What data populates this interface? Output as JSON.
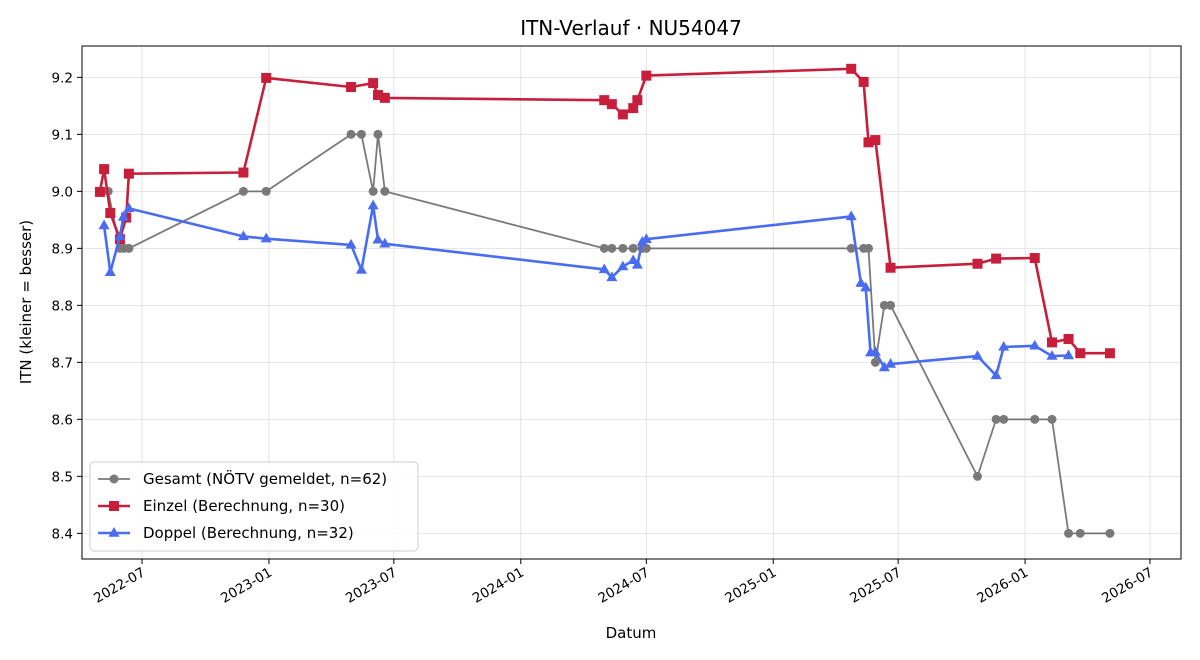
{
  "chart_data": {
    "type": "line",
    "title": "ITN-Verlauf · NU54047",
    "xlabel": "Datum",
    "ylabel": "ITN  (kleiner = besser)",
    "x_ticks": [
      "2022-07",
      "2023-01",
      "2023-07",
      "2024-01",
      "2024-07",
      "2025-01",
      "2025-07",
      "2026-01",
      "2026-07"
    ],
    "y_ticks": [
      "8.4",
      "8.5",
      "8.6",
      "8.7",
      "8.8",
      "8.9",
      "9.0",
      "9.1",
      "9.2"
    ],
    "ylim": [
      8.355,
      9.255
    ],
    "xlim": [
      "2022-04-05",
      "2026-08-15"
    ],
    "grid": true,
    "legend_position": "lower-left",
    "series": [
      {
        "name": "Gesamt (NÖTV gemeldet, n=62)",
        "color": "#555555",
        "marker": "circle",
        "points": [
          [
            "2022-05-01",
            9.0
          ],
          [
            "2022-05-13",
            9.0
          ],
          [
            "2022-05-30",
            8.9
          ],
          [
            "2022-06-05",
            8.9
          ],
          [
            "2022-06-12",
            8.9
          ],
          [
            "2022-11-25",
            9.0
          ],
          [
            "2022-12-28",
            9.0
          ],
          [
            "2023-04-30",
            9.1
          ],
          [
            "2023-05-15",
            9.1
          ],
          [
            "2023-06-01",
            9.0
          ],
          [
            "2023-06-08",
            9.1
          ],
          [
            "2023-06-18",
            9.0
          ],
          [
            "2024-05-01",
            8.9
          ],
          [
            "2024-05-12",
            8.9
          ],
          [
            "2024-05-28",
            8.9
          ],
          [
            "2024-06-12",
            8.9
          ],
          [
            "2024-06-25",
            8.9
          ],
          [
            "2024-07-01",
            8.9
          ],
          [
            "2025-04-24",
            8.9
          ],
          [
            "2025-05-12",
            8.9
          ],
          [
            "2025-05-19",
            8.9
          ],
          [
            "2025-05-29",
            8.7
          ],
          [
            "2025-06-11",
            8.8
          ],
          [
            "2025-06-20",
            8.8
          ],
          [
            "2025-10-24",
            8.5
          ],
          [
            "2025-11-20",
            8.6
          ],
          [
            "2025-12-01",
            8.6
          ],
          [
            "2026-01-15",
            8.6
          ],
          [
            "2026-02-09",
            8.6
          ],
          [
            "2026-03-05",
            8.4
          ],
          [
            "2026-03-22",
            8.4
          ],
          [
            "2026-05-04",
            8.4
          ]
        ]
      },
      {
        "name": "Einzel (Berechnung, n=30)",
        "color": "#c71f3b",
        "marker": "square",
        "points": [
          [
            "2022-05-01",
            8.999
          ],
          [
            "2022-05-07",
            9.039
          ],
          [
            "2022-05-16",
            8.962
          ],
          [
            "2022-05-30",
            8.916
          ],
          [
            "2022-06-08",
            8.954
          ],
          [
            "2022-06-12",
            9.031
          ],
          [
            "2022-11-25",
            9.033
          ],
          [
            "2022-12-28",
            9.199
          ],
          [
            "2023-04-30",
            9.183
          ],
          [
            "2023-06-01",
            9.19
          ],
          [
            "2023-06-08",
            9.169
          ],
          [
            "2023-06-18",
            9.164
          ],
          [
            "2024-05-01",
            9.16
          ],
          [
            "2024-05-12",
            9.153
          ],
          [
            "2024-05-28",
            9.135
          ],
          [
            "2024-06-12",
            9.146
          ],
          [
            "2024-06-18",
            9.16
          ],
          [
            "2024-07-01",
            9.203
          ],
          [
            "2025-04-24",
            9.215
          ],
          [
            "2025-05-12",
            9.192
          ],
          [
            "2025-05-19",
            9.086
          ],
          [
            "2025-05-29",
            9.09
          ],
          [
            "2025-06-20",
            8.866
          ],
          [
            "2025-10-24",
            8.873
          ],
          [
            "2025-11-20",
            8.882
          ],
          [
            "2026-01-15",
            8.883
          ],
          [
            "2026-02-09",
            8.735
          ],
          [
            "2026-03-05",
            8.741
          ],
          [
            "2026-03-22",
            8.716
          ],
          [
            "2026-05-04",
            8.716
          ]
        ]
      },
      {
        "name": "Doppel (Berechnung, n=32)",
        "color": "#4a6cf0",
        "marker": "triangle",
        "points": [
          [
            "2022-05-07",
            8.94
          ],
          [
            "2022-05-16",
            8.858
          ],
          [
            "2022-05-30",
            8.921
          ],
          [
            "2022-06-04",
            8.955
          ],
          [
            "2022-06-12",
            8.97
          ],
          [
            "2022-11-25",
            8.921
          ],
          [
            "2022-12-28",
            8.917
          ],
          [
            "2023-04-30",
            8.906
          ],
          [
            "2023-05-15",
            8.862
          ],
          [
            "2023-06-01",
            8.975
          ],
          [
            "2023-06-08",
            8.915
          ],
          [
            "2023-06-18",
            8.908
          ],
          [
            "2024-05-01",
            8.863
          ],
          [
            "2024-05-12",
            8.849
          ],
          [
            "2024-05-28",
            8.868
          ],
          [
            "2024-06-12",
            8.879
          ],
          [
            "2024-06-18",
            8.871
          ],
          [
            "2024-06-25",
            8.911
          ],
          [
            "2024-07-01",
            8.916
          ],
          [
            "2025-04-24",
            8.956
          ],
          [
            "2025-05-08",
            8.839
          ],
          [
            "2025-05-15",
            8.831
          ],
          [
            "2025-05-22",
            8.717
          ],
          [
            "2025-05-29",
            8.718
          ],
          [
            "2025-06-11",
            8.691
          ],
          [
            "2025-06-20",
            8.697
          ],
          [
            "2025-10-24",
            8.711
          ],
          [
            "2025-11-20",
            8.677
          ],
          [
            "2025-12-01",
            8.727
          ],
          [
            "2026-01-15",
            8.729
          ],
          [
            "2026-02-09",
            8.711
          ],
          [
            "2026-03-05",
            8.712
          ]
        ]
      }
    ]
  }
}
